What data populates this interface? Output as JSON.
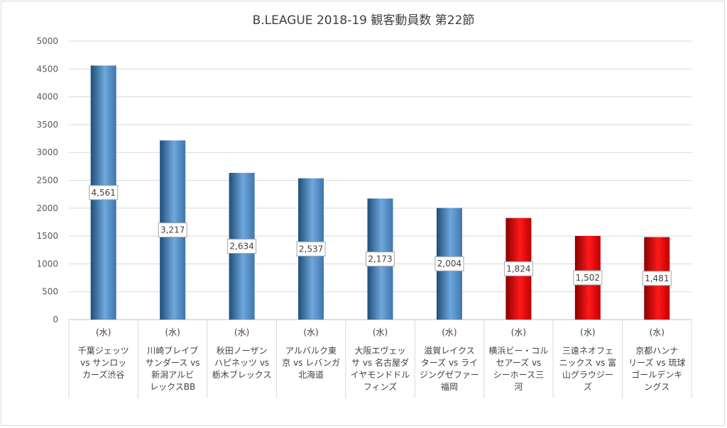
{
  "chart_data": {
    "type": "bar",
    "title": "B.LEAGUE 2018-19 観客動員数 第22節",
    "xlabel": "",
    "ylabel": "",
    "ylim": [
      0,
      5000
    ],
    "yticks": [
      0,
      500,
      1000,
      1500,
      2000,
      2500,
      3000,
      3500,
      4000,
      4500,
      5000
    ],
    "grid": true,
    "legend": "none",
    "categories": [
      {
        "day": "(水)",
        "lines": [
          "千葉ジェッツ",
          "vs サンロッ",
          "カーズ渋谷"
        ]
      },
      {
        "day": "(水)",
        "lines": [
          "川崎ブレイブ",
          "サンダース vs",
          "新潟アルビ",
          "レックスBB"
        ]
      },
      {
        "day": "(水)",
        "lines": [
          "秋田ノーザン",
          "ハピネッツ vs",
          "栃木ブレックス"
        ]
      },
      {
        "day": "(水)",
        "lines": [
          "アルバルク東",
          "京 vs レバンガ",
          "北海道"
        ]
      },
      {
        "day": "(水)",
        "lines": [
          "大阪エヴェッ",
          "サ vs 名古屋ダ",
          "イヤモンドドル",
          "フィンズ"
        ]
      },
      {
        "day": "(水)",
        "lines": [
          "滋賀レイクス",
          "ターズ vs ライ",
          "ジングゼファー",
          "福岡"
        ]
      },
      {
        "day": "(水)",
        "lines": [
          "横浜ビー・コル",
          "セアーズ vs",
          "シーホース三",
          "河"
        ]
      },
      {
        "day": "(水)",
        "lines": [
          "三遠ネオフェ",
          "ニックス vs 富",
          "山グラウジー",
          "ズ"
        ]
      },
      {
        "day": "(水)",
        "lines": [
          "京都ハンナ",
          "リーズ vs 琉球",
          "ゴールデンキ",
          "ングス"
        ]
      }
    ],
    "values": [
      4561,
      3217,
      2634,
      2537,
      2173,
      2004,
      1824,
      1502,
      1481
    ],
    "data_labels": [
      "4,561",
      "3,217",
      "2,634",
      "2,537",
      "2,173",
      "2,004",
      "1,824",
      "1,502",
      "1,481"
    ],
    "colors": [
      "#5b9bd5",
      "#5b9bd5",
      "#5b9bd5",
      "#5b9bd5",
      "#5b9bd5",
      "#5b9bd5",
      "#ff0000",
      "#ff0000",
      "#ff0000"
    ]
  }
}
